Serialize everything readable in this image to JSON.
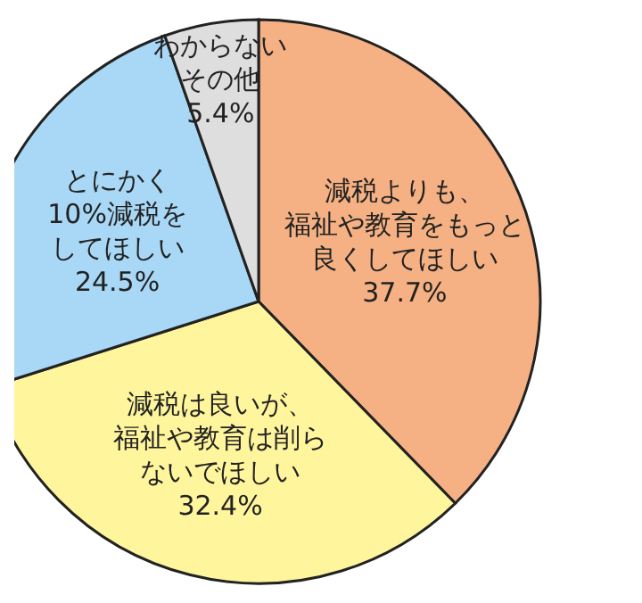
{
  "chart_data": {
    "type": "pie",
    "categories": [
      "減税よりも、福祉や教育をもっと良くしてほしい",
      "減税は良いが、福祉や教育は削らないでほしい",
      "とにかく10%減税をしてほしい",
      "わからないその他"
    ],
    "values": [
      37.7,
      32.4,
      24.5,
      5.4
    ],
    "colors": [
      "#f5b183",
      "#fff59d",
      "#a8d8f5",
      "#dedede"
    ],
    "value_labels": [
      "37.7%",
      "32.4%",
      "24.5%",
      "5.4%"
    ]
  }
}
